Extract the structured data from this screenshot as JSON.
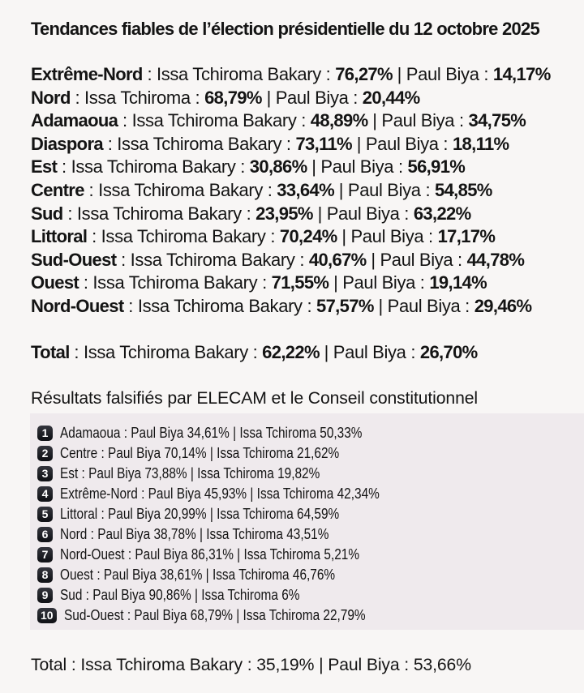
{
  "page": {
    "background": "#f8f6f5",
    "panel_background": "#efeaed",
    "text_color": "#141414",
    "badge_color": "#1a1b21"
  },
  "separators": {
    "colon": " : ",
    "pipe": " | ",
    "space": " "
  },
  "title": "Tendances fiables de l’élection présidentielle du 12 octobre 2025",
  "reliable_results": {
    "rows": [
      {
        "region": "Extrême-Nord",
        "candidate_a": "Issa Tchiroma Bakary",
        "score_a": "76,27%",
        "candidate_b": "Paul Biya",
        "score_b": "14,17%"
      },
      {
        "region": "Nord",
        "candidate_a": "Issa Tchiroma",
        "score_a": "68,79%",
        "candidate_b": "Paul Biya",
        "score_b": "20,44%"
      },
      {
        "region": "Adamaoua",
        "candidate_a": "Issa Tchiroma Bakary",
        "score_a": "48,89%",
        "candidate_b": "Paul Biya",
        "score_b": "34,75%"
      },
      {
        "region": "Diaspora",
        "candidate_a": "Issa Tchiroma Bakary",
        "score_a": "73,11%",
        "candidate_b": "Paul Biya",
        "score_b": "18,11%"
      },
      {
        "region": "Est",
        "candidate_a": "Issa Tchiroma Bakary",
        "score_a": "30,86%",
        "candidate_b": "Paul Biya",
        "score_b": "56,91%"
      },
      {
        "region": "Centre",
        "candidate_a": "Issa Tchiroma Bakary",
        "score_a": "33,64%",
        "candidate_b": "Paul Biya",
        "score_b": "54,85%"
      },
      {
        "region": "Sud",
        "candidate_a": "Issa Tchiroma Bakary",
        "score_a": "23,95%",
        "candidate_b": "Paul Biya",
        "score_b": "63,22%"
      },
      {
        "region": "Littoral",
        "candidate_a": "Issa Tchiroma Bakary",
        "score_a": "70,24%",
        "candidate_b": "Paul Biya",
        "score_b": "17,17%"
      },
      {
        "region": "Sud-Ouest",
        "candidate_a": "Issa Tchiroma Bakary",
        "score_a": "40,67%",
        "candidate_b": "Paul Biya",
        "score_b": "44,78%"
      },
      {
        "region": "Ouest",
        "candidate_a": "Issa Tchiroma Bakary",
        "score_a": "71,55%",
        "candidate_b": "Paul Biya",
        "score_b": "19,14%"
      },
      {
        "region": "Nord-Ouest",
        "candidate_a": "Issa Tchiroma Bakary",
        "score_a": "57,57%",
        "candidate_b": "Paul Biya",
        "score_b": "29,46%"
      }
    ],
    "total": {
      "label": "Total",
      "candidate_a": "Issa Tchiroma Bakary",
      "score_a": "62,22%",
      "candidate_b": "Paul Biya",
      "score_b": "26,70%"
    }
  },
  "falsified_results": {
    "heading": "Résultats falsifiés par ELECAM et le Conseil constitutionnel",
    "rows": [
      {
        "num": "1",
        "region": "Adamaoua",
        "candidate_a": "Paul Biya",
        "score_a": "34,61%",
        "candidate_b": "Issa Tchiroma",
        "score_b": "50,33%"
      },
      {
        "num": "2",
        "region": "Centre",
        "candidate_a": "Paul Biya",
        "score_a": "70,14%",
        "candidate_b": "Issa Tchiroma",
        "score_b": "21,62%"
      },
      {
        "num": "3",
        "region": "Est",
        "candidate_a": "Paul Biya",
        "score_a": "73,88%",
        "candidate_b": "Issa Tchiroma",
        "score_b": "19,82%"
      },
      {
        "num": "4",
        "region": "Extrême-Nord",
        "candidate_a": "Paul Biya",
        "score_a": "45,93%",
        "candidate_b": "Issa Tchiroma",
        "score_b": "42,34%"
      },
      {
        "num": "5",
        "region": "Littoral",
        "candidate_a": "Paul Biya",
        "score_a": "20,99%",
        "candidate_b": "Issa Tchiroma",
        "score_b": "64,59%"
      },
      {
        "num": "6",
        "region": "Nord",
        "candidate_a": "Paul Biya",
        "score_a": "38,78%",
        "candidate_b": "Issa Tchiroma",
        "score_b": "43,51%"
      },
      {
        "num": "7",
        "region": "Nord-Ouest",
        "candidate_a": "Paul Biya",
        "score_a": "86,31%",
        "candidate_b": "Issa Tchiroma",
        "score_b": "5,21%"
      },
      {
        "num": "8",
        "region": "Ouest",
        "candidate_a": "Paul Biya",
        "score_a": "38,61%",
        "candidate_b": "Issa Tchiroma",
        "score_b": "46,76%"
      },
      {
        "num": "9",
        "region": "Sud",
        "candidate_a": "Paul Biya",
        "score_a": "90,86%",
        "candidate_b": "Issa Tchiroma",
        "score_b": "6%"
      },
      {
        "num": "10",
        "region": "Sud-Ouest",
        "candidate_a": "Paul Biya",
        "score_a": "68,79%",
        "candidate_b": "Issa Tchiroma",
        "score_b": "22,79%"
      }
    ]
  },
  "final_total": {
    "label": "Total",
    "candidate_a": "Issa Tchiroma Bakary",
    "score_a": "35,19%",
    "candidate_b": "Paul Biya",
    "score_b": "53,66%"
  }
}
